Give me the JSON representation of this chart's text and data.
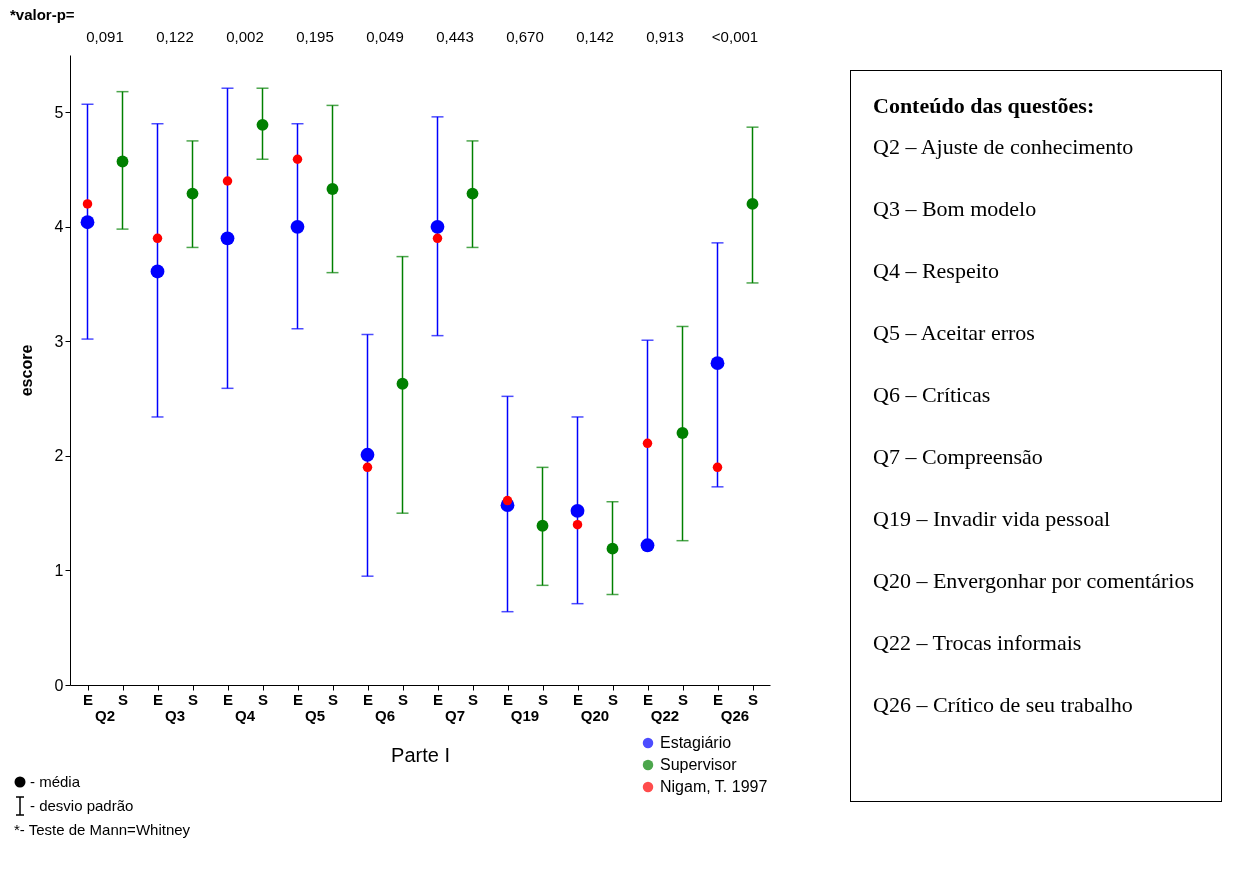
{
  "chart_data": [
    {
      "type": "scatter",
      "xlabel": "Parte I",
      "ylabel": "escore",
      "categories": [
        "E",
        "S",
        "E",
        "S",
        "E",
        "S",
        "E",
        "S",
        "E",
        "S",
        "E",
        "S",
        "E",
        "S",
        "E",
        "S",
        "E",
        "S",
        "E",
        "S"
      ],
      "ylim": [
        0,
        5.5
      ],
      "yticks": [
        0,
        1,
        2,
        3,
        4,
        5
      ],
      "marker": "circle",
      "legend": "bottom right",
      "series": [
        {
          "name": "Estagiário",
          "color": "#0000ff",
          "values": [
            4.04,
            null,
            3.61,
            null,
            3.9,
            null,
            4.0,
            null,
            2.01,
            null,
            4.0,
            null,
            1.57,
            null,
            1.52,
            null,
            1.22,
            null,
            2.81,
            null
          ],
          "errors": [
            [
              3.02,
              5.07
            ],
            null,
            [
              2.34,
              4.9
            ],
            null,
            [
              2.59,
              5.21
            ],
            null,
            [
              3.11,
              4.9
            ],
            null,
            [
              0.95,
              3.06
            ],
            null,
            [
              3.05,
              4.96
            ],
            null,
            [
              0.64,
              2.52
            ],
            null,
            [
              0.71,
              2.34
            ],
            null,
            [
              1.22,
              3.01
            ],
            null,
            [
              1.73,
              3.86
            ],
            null
          ]
        },
        {
          "name": "Supervisor",
          "color": "#008000",
          "values": [
            null,
            4.57,
            null,
            4.29,
            null,
            4.89,
            null,
            4.33,
            null,
            2.63,
            null,
            4.29,
            null,
            1.39,
            null,
            1.19,
            null,
            2.2,
            null,
            4.2
          ],
          "errors": [
            null,
            [
              3.98,
              5.18
            ],
            null,
            [
              3.82,
              4.75
            ],
            null,
            [
              4.59,
              5.21
            ],
            null,
            [
              3.6,
              5.06
            ],
            null,
            [
              1.5,
              3.74
            ],
            null,
            [
              3.82,
              4.75
            ],
            null,
            [
              0.87,
              1.9
            ],
            null,
            [
              0.79,
              1.6
            ],
            null,
            [
              1.26,
              3.13
            ],
            null,
            [
              3.51,
              4.87
            ]
          ]
        },
        {
          "name": "Nigam, T. 1997",
          "color": "#ff0000",
          "values": [
            4.2,
            null,
            3.9,
            null,
            4.4,
            null,
            4.59,
            null,
            1.9,
            null,
            3.9,
            null,
            1.61,
            null,
            1.4,
            null,
            2.11,
            null,
            1.9,
            null
          ]
        }
      ],
      "annotations": [
        "Q2",
        "Q3",
        "Q4",
        "Q5",
        "Q6",
        "Q7",
        "Q19",
        "Q20",
        "Q22",
        "Q26",
        "*valor-p=",
        "0,091",
        "0,122",
        "0,002",
        "0,195",
        "0,049",
        "0,443",
        "0,670",
        "0,142",
        "0,913",
        "<0,001",
        "- média",
        "- desvio padrão",
        "*- Teste de Mann=Whitney"
      ]
    },
    {
      "type": "other",
      "title": "Conteúdo das questões:",
      "annotations": [
        "Q2 – Ajuste de conhecimento",
        "Q3 – Bom modelo",
        "Q4 – Respeito",
        "Q5 – Aceitar erros",
        "Q6 – Críticas",
        "Q7 – Compreensão",
        "Q19 – Invadir vida pessoal",
        "Q20 – Envergonhar por comentários",
        "Q22 – Trocas informais",
        "Q26 – Crítico de seu trabalho"
      ]
    }
  ]
}
